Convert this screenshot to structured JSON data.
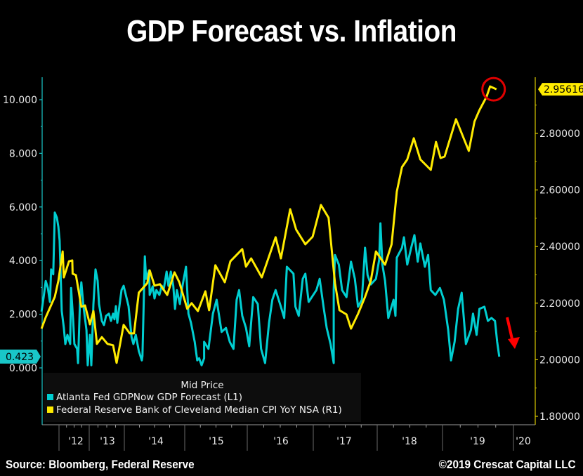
{
  "title": "GDP Forecast vs. Inflation",
  "footer": {
    "source": "Source: Bloomberg, Federal Reserve",
    "copyright": "©2019 Crescat Capital LLC"
  },
  "chart_data": {
    "type": "line",
    "title": "GDP Forecast vs. Inflation",
    "legend": {
      "header": "Mid Price",
      "placement": "bottom-left",
      "entries": [
        {
          "label": "Atlanta Fed GDPNow GDP Forecast  (L1)",
          "color": "#00CED1"
        },
        {
          "label": "Federal Reserve Bank of Cleveland Median CPI YoY NSA  (R1)",
          "color": "#FFEB00"
        }
      ]
    },
    "x_axis": {
      "tick_labels": [
        "'12",
        "'13",
        "'14",
        "'15",
        "'16",
        "'17",
        "'18",
        "'19",
        "'20"
      ],
      "year_boundaries": [
        2012,
        2013,
        2014,
        2015,
        2016,
        2017,
        2018,
        2019,
        2020
      ],
      "range": [
        2011.4,
        2020.3
      ]
    },
    "left_axis": {
      "ticks": [
        "10.000",
        "8.000",
        "6.000",
        "4.000",
        "2.000",
        "0.000"
      ],
      "tick_values": [
        10,
        8,
        6,
        4,
        2,
        0
      ],
      "range": [
        0,
        10.5
      ],
      "last_value_label": "0.423",
      "color": "#00CED1"
    },
    "right_axis": {
      "ticks": [
        "2.80000",
        "2.60000",
        "2.40000",
        "2.20000",
        "2.00000",
        "1.80000"
      ],
      "tick_values": [
        2.8,
        2.6,
        2.4,
        2.2,
        2.0,
        1.8
      ],
      "range": [
        1.8,
        3.0
      ],
      "last_value_label": "2.95616",
      "color": "#FFEB00"
    },
    "annotations": [
      {
        "type": "circle",
        "color": "#E00000",
        "at_series": "Federal Reserve Bank of Cleveland Median CPI YoY NSA",
        "at": [
          2019.72,
          2.956
        ]
      },
      {
        "type": "arrow-down",
        "color": "#FF0000",
        "near_series": "Atlanta Fed GDPNow GDP Forecast",
        "at": [
          2019.95,
          1.1
        ]
      }
    ],
    "series": [
      {
        "name": "Atlanta Fed GDPNow GDP Forecast",
        "axis": "left",
        "color": "#00CED1",
        "points": [
          [
            2011.42,
            2.1
          ],
          [
            2011.49,
            2.63
          ],
          [
            2011.56,
            3.24
          ],
          [
            2011.63,
            2.98
          ],
          [
            2011.7,
            2.46
          ],
          [
            2011.74,
            3.67
          ],
          [
            2011.81,
            3.49
          ],
          [
            2011.86,
            5.79
          ],
          [
            2011.93,
            5.6
          ],
          [
            2011.98,
            5.26
          ],
          [
            2012.02,
            4.74
          ],
          [
            2012.09,
            2.12
          ],
          [
            2012.16,
            1.49
          ],
          [
            2012.21,
            0.89
          ],
          [
            2012.28,
            1.23
          ],
          [
            2012.37,
            0.89
          ],
          [
            2012.4,
            2.98
          ],
          [
            2012.47,
            1.75
          ],
          [
            2012.51,
            0.89
          ],
          [
            2012.6,
            0.71
          ],
          [
            2012.63,
            0.18
          ],
          [
            2012.7,
            2.64
          ],
          [
            2012.74,
            3.19
          ],
          [
            2012.81,
            2.3
          ],
          [
            2012.91,
            1.41
          ],
          [
            2012.95,
            0.1
          ],
          [
            2013.02,
            1.23
          ],
          [
            2013.06,
            0.1
          ],
          [
            2013.12,
            2.38
          ],
          [
            2013.18,
            3.67
          ],
          [
            2013.24,
            3.25
          ],
          [
            2013.28,
            2.38
          ],
          [
            2013.36,
            1.75
          ],
          [
            2013.42,
            1.6
          ],
          [
            2013.48,
            1.94
          ],
          [
            2013.56,
            2.02
          ],
          [
            2013.62,
            1.75
          ],
          [
            2013.68,
            2.02
          ],
          [
            2013.72,
            1.81
          ],
          [
            2013.76,
            2.3
          ],
          [
            2013.8,
            1.68
          ],
          [
            2013.86,
            2.3
          ],
          [
            2013.92,
            2.9
          ],
          [
            2013.98,
            3.06
          ],
          [
            2014.07,
            2.3
          ],
          [
            2014.12,
            1.15
          ],
          [
            2014.15,
            0.89
          ],
          [
            2014.19,
            1.23
          ],
          [
            2014.24,
            0.63
          ],
          [
            2014.29,
            0.28
          ],
          [
            2014.3,
            0.44
          ],
          [
            2014.34,
            4.16
          ],
          [
            2014.36,
            3.32
          ],
          [
            2014.41,
            3.64
          ],
          [
            2014.42,
            2.72
          ],
          [
            2014.47,
            3.04
          ],
          [
            2014.5,
            2.59
          ],
          [
            2014.53,
            2.9
          ],
          [
            2014.58,
            2.72
          ],
          [
            2014.62,
            3.06
          ],
          [
            2014.65,
            2.9
          ],
          [
            2014.7,
            3.59
          ],
          [
            2014.73,
            3.06
          ],
          [
            2014.77,
            3.59
          ],
          [
            2014.81,
            3.06
          ],
          [
            2014.84,
            2.2
          ],
          [
            2014.87,
            2.9
          ],
          [
            2014.92,
            2.38
          ],
          [
            2014.95,
            2.9
          ],
          [
            2015.02,
            3.77
          ],
          [
            2015.06,
            2.02
          ],
          [
            2015.1,
            1.68
          ],
          [
            2015.16,
            0.97
          ],
          [
            2015.2,
            0.28
          ],
          [
            2015.23,
            0.36
          ],
          [
            2015.27,
            0.1
          ],
          [
            2015.31,
            0.36
          ],
          [
            2015.31,
            0.97
          ],
          [
            2015.38,
            0.71
          ],
          [
            2015.45,
            2.02
          ],
          [
            2015.51,
            2.54
          ],
          [
            2015.59,
            1.34
          ],
          [
            2015.66,
            1.49
          ],
          [
            2015.72,
            0.97
          ],
          [
            2015.78,
            0.71
          ],
          [
            2015.83,
            2.54
          ],
          [
            2015.87,
            2.9
          ],
          [
            2015.92,
            1.94
          ],
          [
            2015.98,
            1.49
          ],
          [
            2016.03,
            0.81
          ],
          [
            2016.09,
            2.64
          ],
          [
            2016.16,
            2.38
          ],
          [
            2016.21,
            0.71
          ],
          [
            2016.27,
            0.18
          ],
          [
            2016.33,
            1.68
          ],
          [
            2016.38,
            2.54
          ],
          [
            2016.43,
            2.9
          ],
          [
            2016.51,
            2.28
          ],
          [
            2016.56,
            1.86
          ],
          [
            2016.6,
            3.77
          ],
          [
            2016.7,
            3.51
          ],
          [
            2016.73,
            2.28
          ],
          [
            2016.78,
            1.94
          ],
          [
            2016.84,
            3.32
          ],
          [
            2016.88,
            3.51
          ],
          [
            2016.93,
            2.46
          ],
          [
            2017.05,
            2.9
          ],
          [
            2017.1,
            3.32
          ],
          [
            2017.16,
            2.28
          ],
          [
            2017.21,
            1.49
          ],
          [
            2017.27,
            0.89
          ],
          [
            2017.32,
            0.18
          ],
          [
            2017.32,
            2.9
          ],
          [
            2017.34,
            4.21
          ],
          [
            2017.4,
            3.85
          ],
          [
            2017.45,
            2.9
          ],
          [
            2017.52,
            2.64
          ],
          [
            2017.59,
            3.96
          ],
          [
            2017.65,
            3.32
          ],
          [
            2017.7,
            2.28
          ],
          [
            2017.76,
            2.54
          ],
          [
            2017.81,
            4.48
          ],
          [
            2017.85,
            3.46
          ],
          [
            2017.9,
            3.11
          ],
          [
            2017.98,
            3.32
          ],
          [
            2018.03,
            4.03
          ],
          [
            2018.05,
            5.39
          ],
          [
            2018.08,
            3.85
          ],
          [
            2018.12,
            3.25
          ],
          [
            2018.17,
            1.86
          ],
          [
            2018.25,
            2.54
          ],
          [
            2018.28,
            1.94
          ],
          [
            2018.3,
            4.11
          ],
          [
            2018.38,
            4.48
          ],
          [
            2018.41,
            4.87
          ],
          [
            2018.46,
            3.85
          ],
          [
            2018.52,
            4.48
          ],
          [
            2018.57,
            4.95
          ],
          [
            2018.62,
            3.96
          ],
          [
            2018.66,
            4.64
          ],
          [
            2018.73,
            3.77
          ],
          [
            2018.78,
            4.21
          ],
          [
            2018.82,
            2.9
          ],
          [
            2018.89,
            2.72
          ],
          [
            2018.96,
            2.98
          ],
          [
            2019.02,
            2.54
          ],
          [
            2019.08,
            1.41
          ],
          [
            2019.12,
            0.28
          ],
          [
            2019.17,
            0.97
          ],
          [
            2019.22,
            2.2
          ],
          [
            2019.27,
            2.8
          ],
          [
            2019.3,
            1.86
          ],
          [
            2019.33,
            0.89
          ],
          [
            2019.4,
            1.41
          ],
          [
            2019.43,
            2.02
          ],
          [
            2019.48,
            1.23
          ],
          [
            2019.52,
            2.2
          ],
          [
            2019.59,
            2.28
          ],
          [
            2019.64,
            1.75
          ],
          [
            2019.69,
            1.86
          ],
          [
            2019.74,
            1.75
          ],
          [
            2019.77,
            0.97
          ],
          [
            2019.8,
            0.42
          ]
        ]
      },
      {
        "name": "Federal Reserve Bank of Cleveland Median CPI YoY NSA",
        "axis": "right",
        "color": "#FFEB00",
        "points": [
          [
            2011.42,
            2.11
          ],
          [
            2011.56,
            2.15
          ],
          [
            2011.86,
            2.222
          ],
          [
            2011.98,
            2.279
          ],
          [
            2012.12,
            2.383
          ],
          [
            2012.16,
            2.291
          ],
          [
            2012.33,
            2.348
          ],
          [
            2012.44,
            2.351
          ],
          [
            2012.45,
            2.304
          ],
          [
            2012.56,
            2.299
          ],
          [
            2012.74,
            2.187
          ],
          [
            2012.86,
            2.192
          ],
          [
            2013.02,
            2.125
          ],
          [
            2013.12,
            2.172
          ],
          [
            2013.22,
            2.056
          ],
          [
            2013.36,
            2.08
          ],
          [
            2013.52,
            2.056
          ],
          [
            2013.68,
            2.051
          ],
          [
            2013.78,
            1.989
          ],
          [
            2013.98,
            2.123
          ],
          [
            2014.09,
            2.093
          ],
          [
            2014.16,
            2.093
          ],
          [
            2014.24,
            2.237
          ],
          [
            2014.38,
            2.271
          ],
          [
            2014.42,
            2.316
          ],
          [
            2014.5,
            2.262
          ],
          [
            2014.59,
            2.267
          ],
          [
            2014.71,
            2.229
          ],
          [
            2014.83,
            2.309
          ],
          [
            2014.91,
            2.274
          ],
          [
            2015.04,
            2.18
          ],
          [
            2015.11,
            2.2
          ],
          [
            2015.21,
            2.172
          ],
          [
            2015.33,
            2.242
          ],
          [
            2015.39,
            2.175
          ],
          [
            2015.49,
            2.334
          ],
          [
            2015.64,
            2.274
          ],
          [
            2015.73,
            2.348
          ],
          [
            2015.92,
            2.391
          ],
          [
            2015.98,
            2.329
          ],
          [
            2016.06,
            2.358
          ],
          [
            2016.22,
            2.291
          ],
          [
            2016.43,
            2.433
          ],
          [
            2016.51,
            2.358
          ],
          [
            2016.65,
            2.532
          ],
          [
            2016.74,
            2.46
          ],
          [
            2016.88,
            2.408
          ],
          [
            2016.99,
            2.435
          ],
          [
            2017.12,
            2.547
          ],
          [
            2017.24,
            2.502
          ],
          [
            2017.34,
            2.271
          ],
          [
            2017.41,
            2.175
          ],
          [
            2017.52,
            2.16
          ],
          [
            2017.59,
            2.11
          ],
          [
            2017.7,
            2.162
          ],
          [
            2017.81,
            2.222
          ],
          [
            2017.9,
            2.279
          ],
          [
            2017.98,
            2.383
          ],
          [
            2018.03,
            2.366
          ],
          [
            2018.12,
            2.336
          ],
          [
            2018.22,
            2.408
          ],
          [
            2018.3,
            2.594
          ],
          [
            2018.38,
            2.681
          ],
          [
            2018.46,
            2.708
          ],
          [
            2018.56,
            2.783
          ],
          [
            2018.66,
            2.708
          ],
          [
            2018.82,
            2.671
          ],
          [
            2018.9,
            2.77
          ],
          [
            2018.97,
            2.713
          ],
          [
            2019.03,
            2.718
          ],
          [
            2019.19,
            2.85
          ],
          [
            2019.37,
            2.738
          ],
          [
            2019.45,
            2.842
          ],
          [
            2019.52,
            2.882
          ],
          [
            2019.62,
            2.929
          ],
          [
            2019.67,
            2.966
          ],
          [
            2019.76,
            2.956
          ]
        ]
      }
    ]
  }
}
